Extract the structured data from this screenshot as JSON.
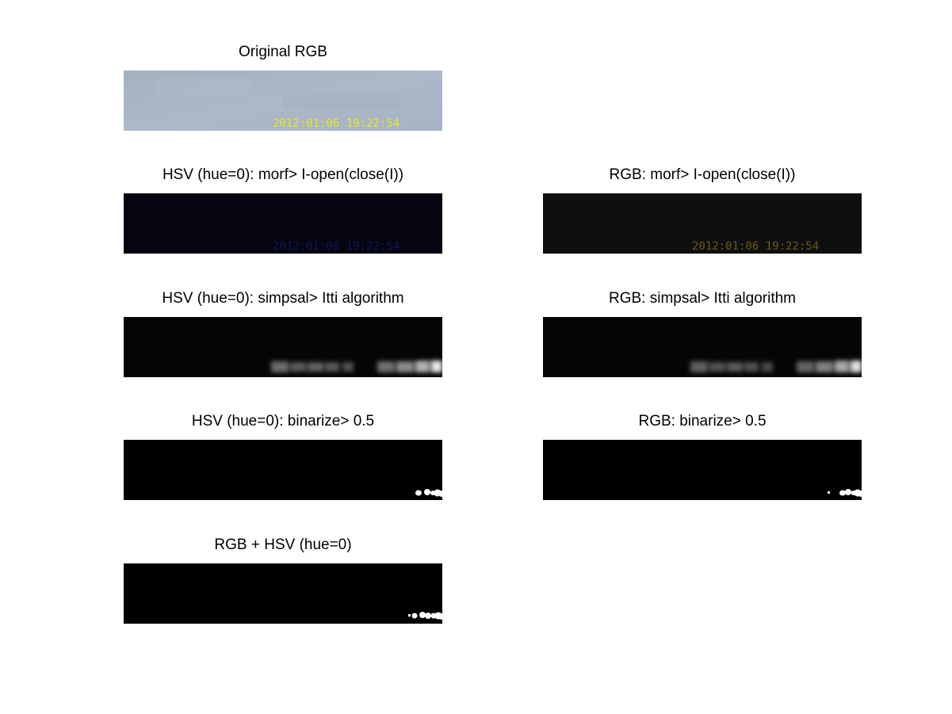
{
  "panels": {
    "original": {
      "title": "Original RGB",
      "timestamp": "2012:01:06 19:22:54"
    },
    "hsv_morf": {
      "title": "HSV (hue=0): morf> I-open(close(I))",
      "timestamp": "2012:01:06 19:22:54"
    },
    "rgb_morf": {
      "title": "RGB: morf> I-open(close(I))",
      "timestamp": "2012:01:06 19:22:54"
    },
    "hsv_itti": {
      "title": "HSV (hue=0): simpsal> Itti algorithm"
    },
    "rgb_itti": {
      "title": "RGB: simpsal> Itti algorithm"
    },
    "hsv_binarize": {
      "title": "HSV (hue=0): binarize> 0.5"
    },
    "rgb_binarize": {
      "title": "RGB: binarize> 0.5"
    },
    "combined": {
      "title": "RGB + HSV (hue=0)"
    }
  },
  "colors": {
    "sky": "#a9b5c6",
    "timestamp_yellow": "#e8e81e",
    "timestamp_blue": "#10165a",
    "timestamp_olive": "#6b5a14",
    "background": "#ffffff",
    "image_black": "#000000"
  }
}
